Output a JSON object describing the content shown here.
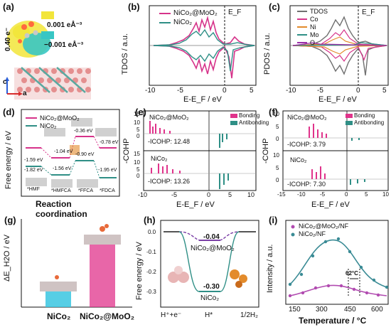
{
  "panel_labels": {
    "a": "(a)",
    "b": "(b)",
    "c": "(c)",
    "d": "(d)",
    "e": "(e)",
    "f": "(f)",
    "g": "(g)",
    "h": "(h)",
    "i": "(i)"
  },
  "panel_a": {
    "legend_pos": "0.001 eÅ⁻³",
    "legend_neg": "−0.001 eÅ⁻³",
    "charge": "0.40 e⁻",
    "axis_c": "c",
    "axis_a": "a",
    "colors": {
      "pos": "#f2e53a",
      "neg": "#38c6c4",
      "slab": "#e6a3a3",
      "mo": "#5aa9a0"
    }
  },
  "panel_b": {
    "ylabel": "TDOS / a.u.",
    "xlabel": "E-E_F / eV",
    "ef_label": "E_F",
    "xticks": [
      "-10",
      "-5",
      "0",
      "5"
    ],
    "legend": [
      "NiCo₂@MoO₂",
      "NiCo₂"
    ],
    "colors": [
      "#d6338a",
      "#2f8f86"
    ]
  },
  "panel_c": {
    "ylabel": "PDOS / a.u.",
    "xlabel": "E-E_F / eV",
    "ef_label": "E_F",
    "xticks": [
      "-10",
      "-5",
      "0",
      "5"
    ],
    "legend": [
      "TDOS",
      "Co",
      "Ni",
      "Mo",
      "O"
    ],
    "colors": [
      "#707070",
      "#d6338a",
      "#e38b2b",
      "#2f8f86",
      "#9b2fa8"
    ]
  },
  "panel_d": {
    "ylabel": "Free energy / eV",
    "xlabel": "Reaction coordination",
    "legend": [
      "NiCo₂@MoO₂",
      "NiCo₂"
    ],
    "colors": [
      "#d6338a",
      "#2f8f86"
    ],
    "values": [
      "-1.04 eV",
      "-0.36 eV",
      "-0.78 eV",
      "-1.59 eV",
      "-1.82 eV",
      "-1.56 eV",
      "-0.90 eV",
      "-1.95 eV"
    ],
    "steps": [
      "*HMF",
      "*HMFCA",
      "*FFCA",
      "*FDCA"
    ]
  },
  "panel_e": {
    "ylabel": "-COHP",
    "xlabel": "E-E_F / eV",
    "legend": [
      "Bonding",
      "Antibonding"
    ],
    "colors": [
      "#e0338b",
      "#2f8f86"
    ],
    "top_name": "NiCo₂@MoO₂",
    "top_icohp": "-ICOHP: 12.48",
    "bottom_name": "NiCo₂",
    "bottom_icohp": "-ICOHP: 13.26",
    "yticks_top": [
      "15",
      "10",
      "5",
      "0"
    ],
    "yticks_bottom": [
      "15",
      "10",
      "5",
      "0"
    ],
    "xticks": [
      "-10",
      "-5",
      "0",
      "5",
      "10"
    ]
  },
  "panel_f": {
    "ylabel": "-COHP",
    "xlabel": "E-E_F / eV",
    "legend": [
      "Bonding",
      "Antibonding"
    ],
    "top_name": "NiCo₂@MoO₂",
    "top_icohp": "-ICOHP: 3.79",
    "bottom_name": "NiCo₂",
    "bottom_icohp": "-ICOHP: 7.30",
    "yticks_top": [
      "10",
      "5",
      "0"
    ],
    "yticks_bottom": [
      "10",
      "5",
      "0"
    ],
    "xticks": [
      "-15",
      "-10",
      "-5",
      "0",
      "5",
      "10"
    ]
  },
  "panel_g": {
    "ylabel": "ΔE_H2O / eV",
    "categories": [
      "NiCo₂",
      "NiCo₂@MoO₂"
    ],
    "colors": [
      "#38c6e0",
      "#e0338b"
    ]
  },
  "panel_h": {
    "ylabel": "Free energy / eV",
    "yticks": [
      "0.0",
      "-0.1",
      "-0.2",
      "-0.3"
    ],
    "xticks": [
      "H⁺+e⁻",
      "H*",
      "1/2H₂"
    ],
    "label_top": "NiCo₂@MoO₂",
    "value_top": "-0.04",
    "label_bottom": "NiCo₂",
    "value_bottom": "-0.30",
    "colors": [
      "#7b3fa6",
      "#2f8f86"
    ]
  },
  "panel_i": {
    "ylabel": "Intensity / a.u.",
    "xlabel": "Temperature / °C",
    "xticks": [
      "150",
      "300",
      "450",
      "600"
    ],
    "legend": [
      "NiCo₂@MoO₂/NF",
      "NiCo₂/NF"
    ],
    "colors": [
      "#b14bb0",
      "#3a8b95"
    ],
    "annotation": "62°C"
  }
}
